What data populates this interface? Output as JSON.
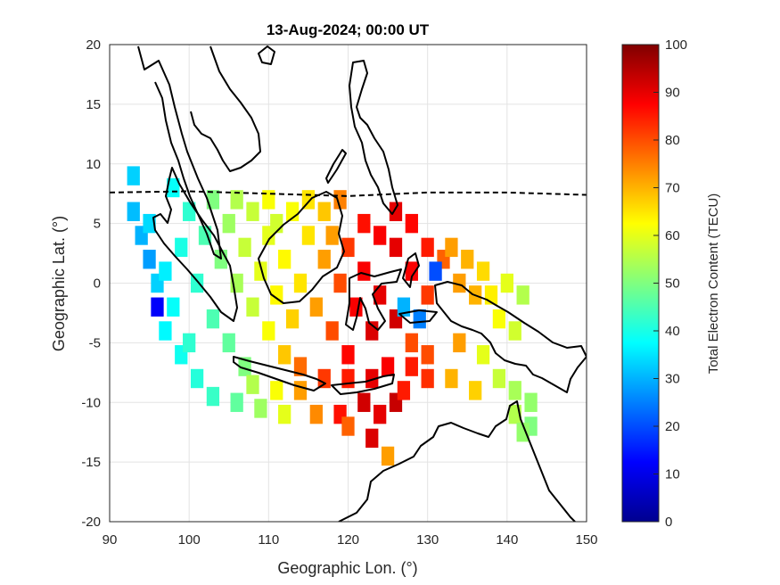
{
  "chart_data": {
    "type": "heatmap",
    "title": "13-Aug-2024; 00:00 UT",
    "xlabel": "Geographic Lon. (°)",
    "ylabel": "Geographic Lat. (°)",
    "xlim": [
      90,
      150
    ],
    "ylim": [
      -20,
      20
    ],
    "xticks": [
      "90",
      "100",
      "110",
      "120",
      "130",
      "140",
      "150"
    ],
    "yticks": [
      "20",
      "15",
      "10",
      "5",
      "0",
      "-5",
      "-10",
      "-15",
      "-20"
    ],
    "grid": true,
    "colorbar": {
      "label": "Total Electron Content (TECU)",
      "range": [
        0,
        100
      ],
      "ticks": [
        "0",
        "10",
        "20",
        "30",
        "40",
        "50",
        "60",
        "70",
        "80",
        "90",
        "100"
      ],
      "colormap": "jet"
    },
    "magnetic_equator": {
      "style": "dashed",
      "points": [
        [
          90,
          7.6
        ],
        [
          100,
          7.7
        ],
        [
          110,
          7.5
        ],
        [
          120,
          7.3
        ],
        [
          130,
          7.6
        ],
        [
          140,
          7.6
        ],
        [
          150,
          7.4
        ]
      ]
    },
    "tec_samples": [
      [
        93,
        9,
        33
      ],
      [
        93,
        6,
        31
      ],
      [
        94,
        4,
        30
      ],
      [
        95,
        2,
        28
      ],
      [
        96,
        0,
        33
      ],
      [
        96,
        -2,
        12
      ],
      [
        97,
        -4,
        37
      ],
      [
        99,
        -6,
        39
      ],
      [
        101,
        -8,
        41
      ],
      [
        103,
        -9.5,
        43
      ],
      [
        106,
        -10,
        47
      ],
      [
        109,
        -10.5,
        53
      ],
      [
        112,
        -11,
        60
      ],
      [
        116,
        -11,
        74
      ],
      [
        119,
        -11,
        86
      ],
      [
        122,
        -10,
        92
      ],
      [
        124,
        -11,
        90
      ],
      [
        126,
        -10,
        93
      ],
      [
        123,
        -13,
        91
      ],
      [
        120,
        -12,
        78
      ],
      [
        125,
        -14.5,
        72
      ],
      [
        98,
        8,
        38
      ],
      [
        100,
        6,
        42
      ],
      [
        102,
        4,
        45
      ],
      [
        104,
        2,
        50
      ],
      [
        106,
        0,
        54
      ],
      [
        108,
        -2,
        57
      ],
      [
        110,
        -4,
        62
      ],
      [
        112,
        -6,
        68
      ],
      [
        114,
        -7,
        77
      ],
      [
        117,
        -8,
        82
      ],
      [
        120,
        -8,
        85
      ],
      [
        99,
        3,
        40
      ],
      [
        101,
        0,
        42
      ],
      [
        103,
        -3,
        45
      ],
      [
        105,
        -5,
        47
      ],
      [
        107,
        -7,
        50
      ],
      [
        100,
        -5,
        42
      ],
      [
        98,
        -2,
        38
      ],
      [
        97,
        1,
        36
      ],
      [
        95,
        5,
        34
      ],
      [
        103,
        7,
        50
      ],
      [
        105,
        5,
        53
      ],
      [
        107,
        3,
        57
      ],
      [
        109,
        1,
        60
      ],
      [
        111,
        -1,
        63
      ],
      [
        113,
        -3,
        67
      ],
      [
        110,
        4,
        60
      ],
      [
        112,
        2,
        63
      ],
      [
        114,
        0,
        65
      ],
      [
        116,
        -2,
        72
      ],
      [
        118,
        -4,
        80
      ],
      [
        120,
        -6,
        87
      ],
      [
        113,
        6,
        62
      ],
      [
        115,
        4,
        65
      ],
      [
        117,
        2,
        72
      ],
      [
        119,
        0,
        80
      ],
      [
        121,
        -2,
        88
      ],
      [
        123,
        -4,
        91
      ],
      [
        119,
        7,
        75
      ],
      [
        118,
        4,
        72
      ],
      [
        120,
        3,
        82
      ],
      [
        122,
        1,
        88
      ],
      [
        124,
        -1,
        90
      ],
      [
        126,
        -3,
        92
      ],
      [
        122,
        5,
        86
      ],
      [
        124,
        4,
        88
      ],
      [
        126,
        3,
        90
      ],
      [
        128,
        1,
        88
      ],
      [
        130,
        -1,
        82
      ],
      [
        128,
        -5,
        80
      ],
      [
        126,
        6,
        90
      ],
      [
        128,
        5,
        87
      ],
      [
        130,
        3,
        85
      ],
      [
        132,
        2,
        78
      ],
      [
        134,
        0,
        72
      ],
      [
        136,
        -1,
        70
      ],
      [
        131,
        1,
        20
      ],
      [
        127,
        -2,
        30
      ],
      [
        129,
        -3,
        25
      ],
      [
        133,
        3,
        72
      ],
      [
        135,
        2,
        70
      ],
      [
        137,
        1,
        66
      ],
      [
        138,
        -1,
        64
      ],
      [
        140,
        0,
        60
      ],
      [
        142,
        -1,
        55
      ],
      [
        139,
        -3,
        62
      ],
      [
        141,
        -4,
        58
      ],
      [
        137,
        -6,
        60
      ],
      [
        139,
        -8,
        57
      ],
      [
        141,
        -9,
        54
      ],
      [
        143,
        -10,
        52
      ],
      [
        141,
        -11,
        55
      ],
      [
        143,
        -12,
        50
      ],
      [
        142,
        -12.5,
        52
      ],
      [
        134,
        -5,
        72
      ],
      [
        133,
        -8,
        70
      ],
      [
        136,
        -9,
        67
      ],
      [
        130,
        -6,
        80
      ],
      [
        128,
        -7,
        85
      ],
      [
        130,
        -8,
        83
      ],
      [
        111,
        5,
        58
      ],
      [
        110,
        7,
        62
      ],
      [
        115,
        7,
        65
      ],
      [
        117,
        6,
        68
      ],
      [
        106,
        7,
        55
      ],
      [
        108,
        6,
        57
      ],
      [
        125,
        -7,
        88
      ],
      [
        123,
        -8,
        90
      ],
      [
        127,
        -9,
        85
      ],
      [
        114,
        -9,
        72
      ],
      [
        111,
        -9,
        62
      ],
      [
        108,
        -8.5,
        55
      ]
    ]
  }
}
